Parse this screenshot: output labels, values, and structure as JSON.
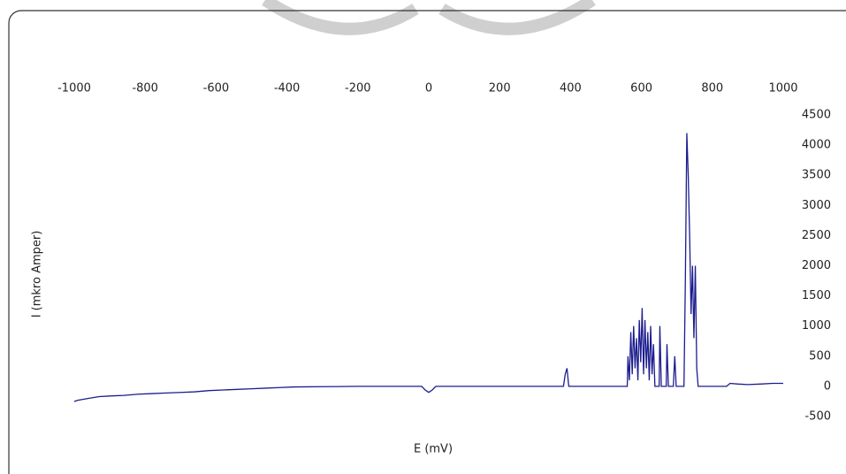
{
  "chart_data": {
    "type": "line",
    "xlabel": "E (mV)",
    "ylabel": "I (mkro Amper)",
    "x": [
      -1000,
      -990,
      -960,
      -930,
      -900,
      -860,
      -820,
      -780,
      -740,
      -700,
      -660,
      -620,
      -580,
      -540,
      -500,
      -460,
      -420,
      -380,
      -300,
      -200,
      -100,
      -20,
      -10,
      0,
      10,
      20,
      200,
      380,
      385,
      390,
      395,
      560,
      562,
      566,
      570,
      574,
      578,
      582,
      586,
      590,
      594,
      598,
      602,
      606,
      610,
      614,
      618,
      622,
      626,
      630,
      634,
      638,
      650,
      652,
      656,
      670,
      672,
      676,
      690,
      694,
      698,
      720,
      724,
      728,
      732,
      736,
      740,
      744,
      748,
      752,
      756,
      760,
      840,
      850,
      870,
      900,
      940,
      970,
      1000
    ],
    "series": [
      {
        "color": "#1c1c8e",
        "values": [
          -250,
          -230,
          -200,
          -170,
          -160,
          -150,
          -130,
          -120,
          -110,
          -100,
          -90,
          -70,
          -60,
          -50,
          -40,
          -30,
          -20,
          -10,
          -5,
          0,
          0,
          0,
          -60,
          -100,
          -60,
          0,
          0,
          0,
          200,
          300,
          0,
          0,
          500,
          100,
          900,
          200,
          1000,
          300,
          800,
          100,
          1100,
          400,
          1300,
          200,
          1100,
          300,
          900,
          100,
          1000,
          200,
          700,
          0,
          0,
          1000,
          0,
          0,
          700,
          0,
          0,
          500,
          0,
          0,
          1800,
          4200,
          3500,
          2500,
          1200,
          2000,
          800,
          2000,
          300,
          0,
          0,
          50,
          40,
          30,
          40,
          50,
          50
        ]
      }
    ],
    "xlim": [
      -1000,
      1000
    ],
    "xticks": [
      -1000,
      -800,
      -600,
      -400,
      -200,
      0,
      200,
      400,
      600,
      800,
      1000
    ],
    "ylim": [
      -500,
      4500
    ],
    "yticks": [
      -500,
      0,
      500,
      1000,
      1500,
      2000,
      2500,
      3000,
      3500,
      4000,
      4500
    ],
    "grid": false
  }
}
